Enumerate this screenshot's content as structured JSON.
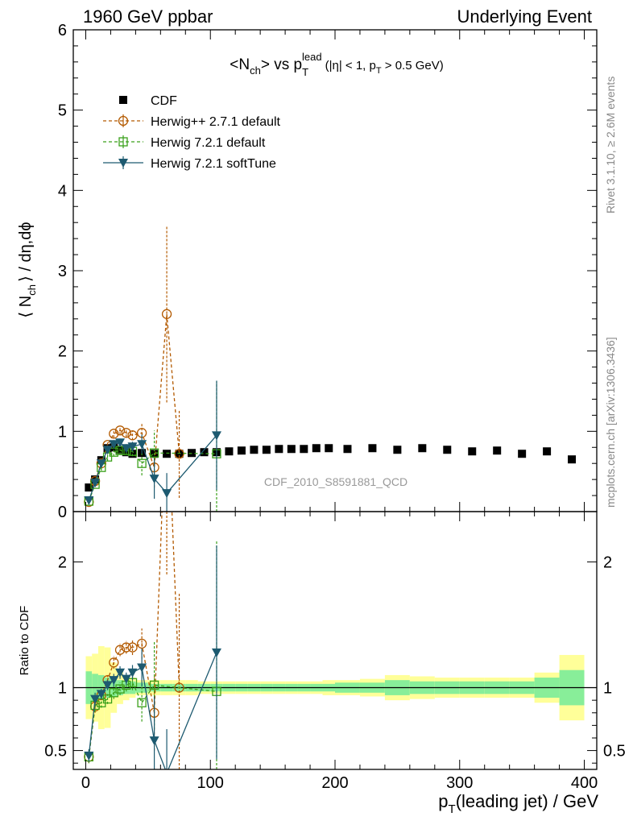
{
  "header": {
    "left": "1960 GeV ppbar",
    "right": "Underlying Event"
  },
  "side_labels": {
    "rivet": "Rivet 3.1.10, ≥ 2.6M events",
    "mcplots": "mcplots.cern.ch [arXiv:1306.3436]"
  },
  "colors": {
    "cdf": "#000000",
    "herwigpp": "#b35a00",
    "herwig721": "#3aa01a",
    "softtune": "#1d5a70",
    "band_outer": "#ffff99",
    "band_inner": "#88ee99"
  },
  "chart_data": [
    {
      "type": "scatter",
      "panel": "main",
      "title": "<Nch> vs pT lead (|η| < 1, pT > 0.5 GeV)",
      "title_parts": {
        "main": "<N",
        "sub1": "ch",
        "mid": "> vs p",
        "sub2": "T",
        "sup": "lead",
        "paren_a": "(|η| < 1, p",
        "sub3": "T",
        "paren_b": " > 0.5 GeV)"
      },
      "ylabel": "⟨ Nch ⟩ / dη,dφ",
      "ylabel_parts": {
        "a": "⟨ N",
        "sub": "ch",
        "b": "⟩ / dη,dϕ"
      },
      "xlabel": "",
      "ylim": [
        0,
        6
      ],
      "xlim": [
        -10,
        410
      ],
      "yticks": [
        0,
        1,
        2,
        3,
        4,
        5,
        6
      ],
      "legend_position": "top-left",
      "watermark": "CDF_2010_S8591881_QCD",
      "series": [
        {
          "name": "CDF",
          "marker": "square-filled",
          "x": [
            2.5,
            7.5,
            12.5,
            17.5,
            22.5,
            27.5,
            32.5,
            37.5,
            45,
            55,
            65,
            75,
            85,
            95,
            105,
            115,
            125,
            135,
            145,
            155,
            165,
            175,
            185,
            195,
            210,
            230,
            250,
            270,
            290,
            310,
            330,
            350,
            370,
            390
          ],
          "y": [
            0.3,
            0.4,
            0.64,
            0.79,
            0.8,
            0.77,
            0.74,
            0.72,
            0.73,
            0.72,
            0.72,
            0.72,
            0.73,
            0.74,
            0.74,
            0.75,
            0.76,
            0.77,
            0.77,
            0.78,
            0.78,
            0.78,
            0.79,
            0.79,
            0.78,
            0.79,
            0.77,
            0.79,
            0.77,
            0.75,
            0.76,
            0.72,
            0.75,
            0.65
          ]
        },
        {
          "name": "Herwig++ 2.7.1 default",
          "marker": "circle-open",
          "line": "dashed",
          "x": [
            2.5,
            7.5,
            12.5,
            17.5,
            22.5,
            27.5,
            32.5,
            37.5,
            45,
            55,
            65,
            75
          ],
          "y": [
            0.12,
            0.38,
            0.6,
            0.83,
            0.97,
            1.01,
            0.98,
            0.95,
            0.98,
            0.55,
            2.46,
            0.72
          ],
          "yerr": [
            0.03,
            0.03,
            0.04,
            0.05,
            0.05,
            0.05,
            0.05,
            0.06,
            0.12,
            0.25,
            1.1,
            0.55
          ]
        },
        {
          "name": "Herwig 7.2.1 default",
          "marker": "square-open",
          "line": "dashed",
          "x": [
            2.5,
            7.5,
            12.5,
            17.5,
            22.5,
            27.5,
            32.5,
            37.5,
            45,
            55,
            105
          ],
          "y": [
            0.13,
            0.34,
            0.55,
            0.68,
            0.74,
            0.76,
            0.76,
            0.75,
            0.6,
            0.73,
            0.72
          ],
          "yerr": [
            0.03,
            0.03,
            0.04,
            0.05,
            0.05,
            0.05,
            0.05,
            0.06,
            0.15,
            0.28,
            0.9
          ]
        },
        {
          "name": "Herwig 7.2.1 softTune",
          "marker": "triangle-down-filled",
          "line": "solid",
          "x": [
            2.5,
            7.5,
            12.5,
            17.5,
            22.5,
            27.5,
            32.5,
            37.5,
            45,
            55,
            65,
            105
          ],
          "y": [
            0.14,
            0.36,
            0.6,
            0.77,
            0.84,
            0.86,
            0.79,
            0.81,
            0.84,
            0.41,
            0.23,
            0.95
          ],
          "yerr": [
            0.03,
            0.03,
            0.04,
            0.05,
            0.05,
            0.05,
            0.05,
            0.06,
            0.12,
            0.25,
            0.25,
            0.68
          ]
        }
      ]
    },
    {
      "type": "line",
      "panel": "ratio",
      "ylabel": "Ratio to CDF",
      "xlabel": "pT(leading jet) / GeV",
      "xlabel_parts": {
        "a": "p",
        "sub": "T",
        "b": "(leading jet) / GeV"
      },
      "ylim": [
        0.35,
        2.4
      ],
      "xlim": [
        -10,
        410
      ],
      "yticks": [
        0.5,
        1,
        2
      ],
      "xticks": [
        0,
        100,
        200,
        300,
        400
      ],
      "reference": 1,
      "band_edges": [
        0,
        5,
        10,
        15,
        20,
        25,
        30,
        35,
        40,
        50,
        60,
        70,
        80,
        90,
        100,
        110,
        120,
        130,
        140,
        150,
        160,
        170,
        180,
        190,
        200,
        220,
        240,
        260,
        280,
        300,
        320,
        340,
        360,
        380,
        400
      ],
      "band_inner": [
        0.13,
        0.11,
        0.1,
        0.08,
        0.07,
        0.06,
        0.05,
        0.05,
        0.04,
        0.03,
        0.03,
        0.03,
        0.03,
        0.03,
        0.03,
        0.03,
        0.03,
        0.03,
        0.03,
        0.03,
        0.03,
        0.03,
        0.03,
        0.03,
        0.04,
        0.04,
        0.06,
        0.05,
        0.05,
        0.05,
        0.05,
        0.05,
        0.08,
        0.14
      ],
      "band_outer": [
        0.25,
        0.27,
        0.33,
        0.32,
        0.2,
        0.13,
        0.1,
        0.08,
        0.06,
        0.06,
        0.06,
        0.06,
        0.06,
        0.05,
        0.05,
        0.05,
        0.05,
        0.05,
        0.05,
        0.05,
        0.05,
        0.05,
        0.05,
        0.06,
        0.06,
        0.07,
        0.1,
        0.09,
        0.08,
        0.08,
        0.08,
        0.08,
        0.12,
        0.26
      ],
      "series": [
        {
          "name": "Herwig++ 2.7.1 default",
          "x": [
            2.5,
            7.5,
            12.5,
            17.5,
            22.5,
            27.5,
            32.5,
            37.5,
            45,
            55,
            65,
            75
          ],
          "y": [
            0.45,
            0.85,
            0.94,
            1.06,
            1.2,
            1.3,
            1.32,
            1.32,
            1.35,
            0.8,
            3.4,
            1.0
          ],
          "yerr": [
            0.05,
            0.05,
            0.04,
            0.04,
            0.05,
            0.05,
            0.05,
            0.06,
            0.12,
            0.3,
            1.5,
            0.75
          ]
        },
        {
          "name": "Herwig 7.2.1 default",
          "x": [
            2.5,
            7.5,
            12.5,
            17.5,
            22.5,
            27.5,
            32.5,
            37.5,
            45,
            55,
            105
          ],
          "y": [
            0.45,
            0.86,
            0.88,
            0.91,
            0.96,
            0.99,
            1.02,
            1.04,
            0.88,
            1.02,
            0.97
          ],
          "yerr": [
            0.05,
            0.05,
            0.04,
            0.04,
            0.05,
            0.05,
            0.05,
            0.06,
            0.15,
            0.35,
            1.2
          ]
        },
        {
          "name": "Herwig 7.2.1 softTune",
          "x": [
            2.5,
            7.5,
            12.5,
            17.5,
            22.5,
            27.5,
            32.5,
            37.5,
            45,
            55,
            65,
            105
          ],
          "y": [
            0.46,
            0.91,
            0.95,
            1.02,
            1.06,
            1.12,
            1.07,
            1.12,
            1.16,
            0.58,
            0.32,
            1.28
          ],
          "yerr": [
            0.05,
            0.05,
            0.04,
            0.04,
            0.05,
            0.05,
            0.05,
            0.06,
            0.15,
            0.35,
            0.35,
            0.85
          ]
        }
      ]
    }
  ]
}
